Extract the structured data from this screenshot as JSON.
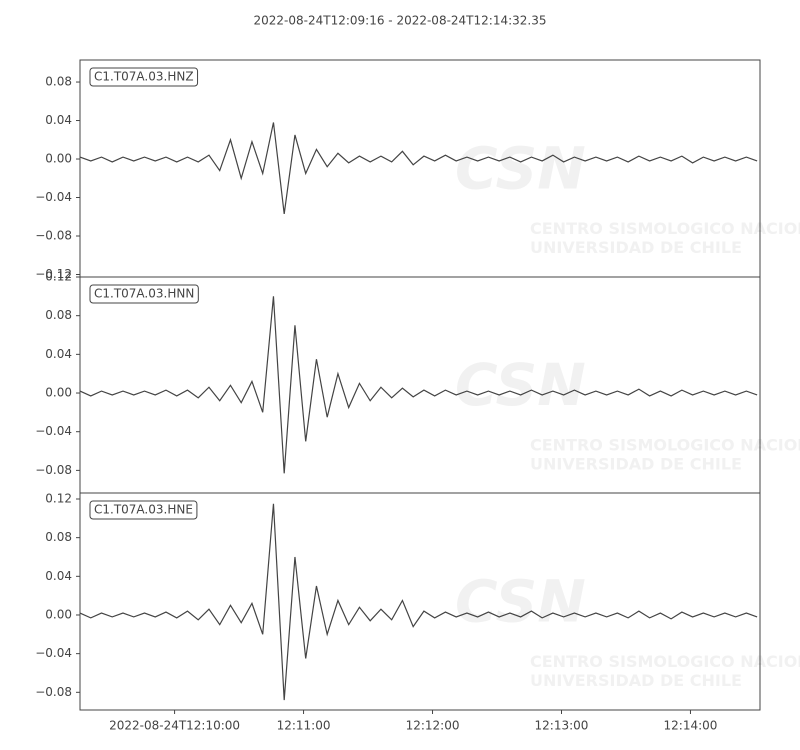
{
  "chart_data": {
    "type": "line",
    "title": "2022-08-24T12:09:16  -  2022-08-24T12:14:32.35",
    "color": "#444444",
    "watermark": {
      "logo": "CSN",
      "line1": "CENTRO SISMOLOGICO NACIONAL",
      "line2": "UNIVERSIDAD DE CHILE"
    },
    "xlim": [
      "2022-08-24T12:09:16",
      "2022-08-24T12:14:32.35"
    ],
    "xticks": [
      "2022-08-24T12:10:00",
      {
        "value": "2022-08-24T12:11:00",
        "label": "12:11:00"
      },
      {
        "value": "2022-08-24T12:12:00",
        "label": "12:12:00"
      },
      {
        "value": "2022-08-24T12:13:00",
        "label": "12:13:00"
      },
      {
        "value": "2022-08-24T12:14:00",
        "label": "12:14:00"
      }
    ],
    "x": [
      "2022-08-24T12:09:16",
      "2022-08-24T12:09:21",
      "2022-08-24T12:09:26",
      "2022-08-24T12:09:31",
      "2022-08-24T12:09:36",
      "2022-08-24T12:09:41",
      "2022-08-24T12:09:46",
      "2022-08-24T12:09:51",
      "2022-08-24T12:09:56",
      "2022-08-24T12:10:01",
      "2022-08-24T12:10:06",
      "2022-08-24T12:10:11",
      "2022-08-24T12:10:16",
      "2022-08-24T12:10:21",
      "2022-08-24T12:10:26",
      "2022-08-24T12:10:31",
      "2022-08-24T12:10:36",
      "2022-08-24T12:10:41",
      "2022-08-24T12:10:46",
      "2022-08-24T12:10:51",
      "2022-08-24T12:10:56",
      "2022-08-24T12:11:01",
      "2022-08-24T12:11:06",
      "2022-08-24T12:11:11",
      "2022-08-24T12:11:16",
      "2022-08-24T12:11:21",
      "2022-08-24T12:11:26",
      "2022-08-24T12:11:31",
      "2022-08-24T12:11:36",
      "2022-08-24T12:11:41",
      "2022-08-24T12:11:46",
      "2022-08-24T12:11:51",
      "2022-08-24T12:11:56",
      "2022-08-24T12:12:01",
      "2022-08-24T12:12:06",
      "2022-08-24T12:12:11",
      "2022-08-24T12:12:16",
      "2022-08-24T12:12:21",
      "2022-08-24T12:12:26",
      "2022-08-24T12:12:31",
      "2022-08-24T12:12:36",
      "2022-08-24T12:12:41",
      "2022-08-24T12:12:46",
      "2022-08-24T12:12:51",
      "2022-08-24T12:12:56",
      "2022-08-24T12:13:01",
      "2022-08-24T12:13:06",
      "2022-08-24T12:13:11",
      "2022-08-24T12:13:16",
      "2022-08-24T12:13:21",
      "2022-08-24T12:13:26",
      "2022-08-24T12:13:31",
      "2022-08-24T12:13:36",
      "2022-08-24T12:13:41",
      "2022-08-24T12:13:46",
      "2022-08-24T12:13:51",
      "2022-08-24T12:13:56",
      "2022-08-24T12:14:01",
      "2022-08-24T12:14:06",
      "2022-08-24T12:14:11",
      "2022-08-24T12:14:16",
      "2022-08-24T12:14:21",
      "2022-08-24T12:14:26",
      "2022-08-24T12:14:31"
    ],
    "series": [
      {
        "name": "C1.T07A.03.HNZ",
        "ylim": [
          -0.1226,
          0.1029
        ],
        "yticks": [
          0.08,
          0.04,
          {
            "value": 0,
            "label": "0.00"
          },
          {
            "value": -0.04,
            "label": "−0.04"
          },
          {
            "value": -0.08,
            "label": "−0.08"
          },
          {
            "value": -0.12,
            "label": "−0.12"
          }
        ],
        "values": [
          0.002,
          -0.002,
          0.002,
          -0.003,
          0.002,
          -0.002,
          0.002,
          -0.002,
          0.002,
          -0.003,
          0.002,
          -0.003,
          0.004,
          -0.012,
          0.02,
          -0.02,
          0.018,
          -0.015,
          0.038,
          -0.057,
          0.025,
          -0.015,
          0.01,
          -0.008,
          0.006,
          -0.004,
          0.003,
          -0.003,
          0.003,
          -0.003,
          0.008,
          -0.006,
          0.003,
          -0.002,
          0.004,
          -0.002,
          0.002,
          -0.002,
          0.002,
          -0.002,
          0.002,
          -0.003,
          0.002,
          -0.002,
          0.004,
          -0.003,
          0.002,
          -0.002,
          0.002,
          -0.002,
          0.002,
          -0.003,
          0.003,
          -0.002,
          0.002,
          -0.002,
          0.003,
          -0.004,
          0.002,
          -0.002,
          0.002,
          -0.002,
          0.002,
          -0.002
        ]
      },
      {
        "name": "C1.T07A.03.HNN",
        "ylim": [
          -0.1034,
          0.12
        ],
        "yticks": [
          0.12,
          0.08,
          0.04,
          {
            "value": 0,
            "label": "0.00"
          },
          {
            "value": -0.04,
            "label": "−0.04"
          },
          {
            "value": -0.08,
            "label": "−0.08"
          }
        ],
        "values": [
          0.002,
          -0.003,
          0.002,
          -0.002,
          0.002,
          -0.002,
          0.002,
          -0.002,
          0.003,
          -0.003,
          0.003,
          -0.005,
          0.006,
          -0.008,
          0.008,
          -0.01,
          0.012,
          -0.02,
          0.1,
          -0.083,
          0.07,
          -0.05,
          0.035,
          -0.025,
          0.02,
          -0.015,
          0.01,
          -0.008,
          0.006,
          -0.005,
          0.005,
          -0.004,
          0.003,
          -0.003,
          0.003,
          -0.002,
          0.002,
          -0.002,
          0.002,
          -0.002,
          0.002,
          -0.002,
          0.003,
          -0.002,
          0.002,
          -0.002,
          0.003,
          -0.002,
          0.002,
          -0.002,
          0.002,
          -0.002,
          0.004,
          -0.003,
          0.002,
          -0.003,
          0.003,
          -0.002,
          0.002,
          -0.002,
          0.002,
          -0.002,
          0.002,
          -0.002
        ]
      },
      {
        "name": "C1.T07A.03.HNE",
        "ylim": [
          -0.0983,
          0.1262
        ],
        "yticks": [
          0.12,
          0.08,
          0.04,
          {
            "value": 0,
            "label": "0.00"
          },
          {
            "value": -0.04,
            "label": "−0.04"
          },
          {
            "value": -0.08,
            "label": "−0.08"
          }
        ],
        "values": [
          0.002,
          -0.003,
          0.002,
          -0.002,
          0.002,
          -0.002,
          0.002,
          -0.002,
          0.003,
          -0.003,
          0.004,
          -0.005,
          0.006,
          -0.01,
          0.01,
          -0.008,
          0.012,
          -0.02,
          0.115,
          -0.088,
          0.06,
          -0.045,
          0.03,
          -0.02,
          0.015,
          -0.01,
          0.008,
          -0.006,
          0.006,
          -0.005,
          0.015,
          -0.012,
          0.004,
          -0.003,
          0.003,
          -0.002,
          0.002,
          -0.002,
          0.003,
          -0.002,
          0.002,
          -0.002,
          0.004,
          -0.003,
          0.002,
          -0.002,
          0.002,
          -0.002,
          0.002,
          -0.002,
          0.002,
          -0.003,
          0.004,
          -0.003,
          0.002,
          -0.004,
          0.003,
          -0.002,
          0.002,
          -0.002,
          0.002,
          -0.002,
          0.002,
          -0.002
        ]
      }
    ]
  }
}
